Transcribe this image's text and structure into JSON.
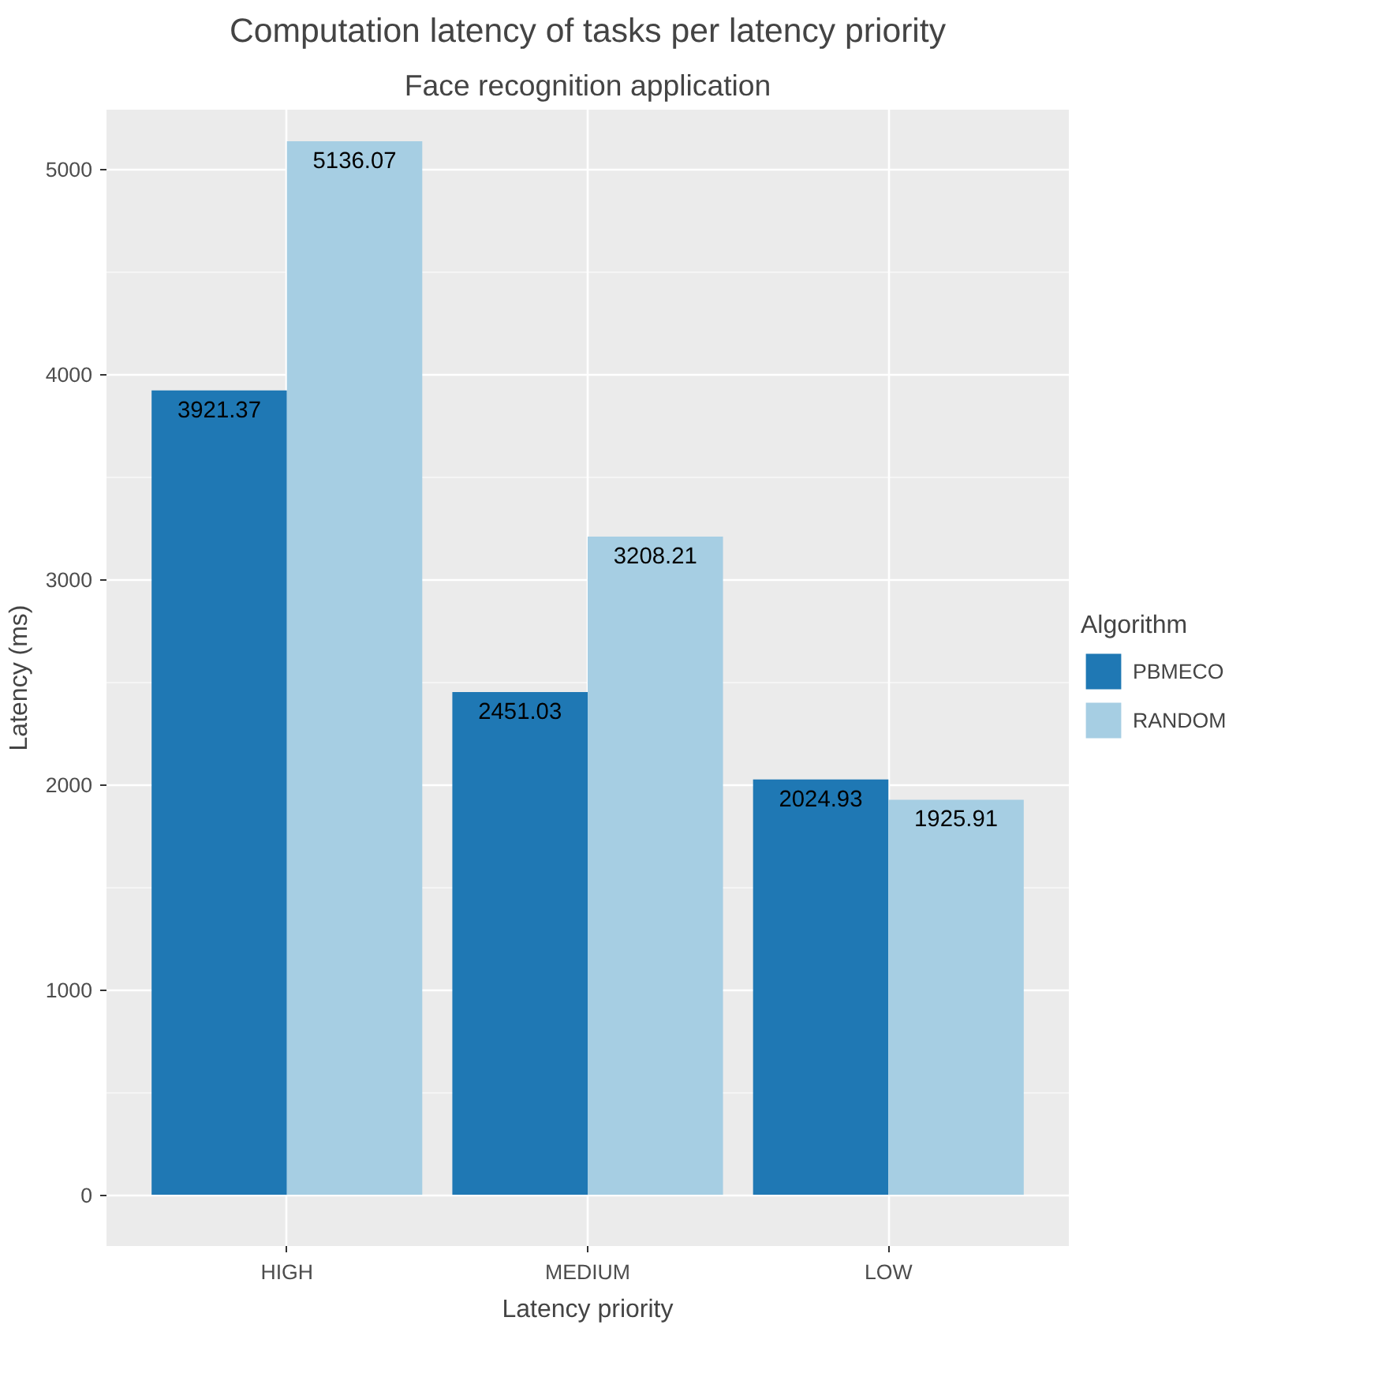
{
  "chart_data": {
    "type": "bar",
    "title": "Computation latency of tasks per latency priority",
    "subtitle": "Face recognition application",
    "xlabel": "Latency priority",
    "ylabel": "Latency (ms)",
    "legend_title": "Algorithm",
    "categories": [
      "HIGH",
      "MEDIUM",
      "LOW"
    ],
    "series": [
      {
        "name": "PBMECO",
        "color": "#1f78b4",
        "values": [
          3921.37,
          2451.03,
          2024.93
        ]
      },
      {
        "name": "RANDOM",
        "color": "#a6cee3",
        "values": [
          5136.07,
          3208.21,
          1925.91
        ]
      }
    ],
    "ylim": [
      -250,
      5290
    ],
    "yticks": [
      0,
      1000,
      2000,
      3000,
      4000,
      5000
    ],
    "grid": true,
    "legend": "right",
    "data_labels": true
  }
}
